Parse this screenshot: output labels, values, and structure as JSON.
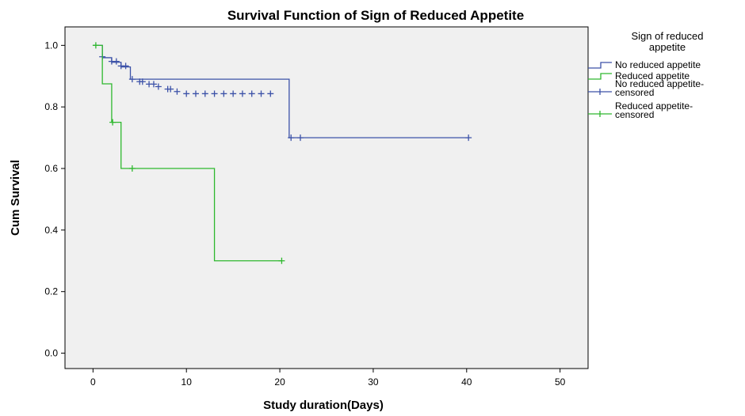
{
  "chart_data": {
    "type": "line",
    "title": "Survival Function of Sign of Reduced Appetite",
    "xlabel": "Study duration(Days)",
    "ylabel": "Cum Survival",
    "xlim": [
      -3,
      53
    ],
    "ylim": [
      -0.05,
      1.06
    ],
    "x_ticks": [
      "0",
      "10",
      "20",
      "30",
      "40",
      "50"
    ],
    "y_ticks": [
      "0.0",
      "0.2",
      "0.4",
      "0.6",
      "0.8",
      "1.0"
    ],
    "grid": false,
    "legend_position": "right",
    "legend_title_lines": [
      "Sign of reduced",
      "appetite"
    ],
    "background": "#f0f0f0",
    "series": [
      {
        "name": "No reduced appetite",
        "color": "#3c52a8",
        "steps": [
          [
            0,
            1.0
          ],
          [
            1,
            0.96
          ],
          [
            2,
            0.945
          ],
          [
            3,
            0.93
          ],
          [
            4,
            0.89
          ],
          [
            21,
            0.7
          ]
        ],
        "end_x": 40.2,
        "censored_name_lines": [
          "No reduced appetite-",
          "censored"
        ],
        "censored": [
          [
            1,
            0.963
          ],
          [
            2,
            0.948
          ],
          [
            2.5,
            0.948
          ],
          [
            3,
            0.933
          ],
          [
            3.5,
            0.933
          ],
          [
            4.2,
            0.89
          ],
          [
            5,
            0.882
          ],
          [
            5.3,
            0.882
          ],
          [
            6,
            0.874
          ],
          [
            6.5,
            0.874
          ],
          [
            7,
            0.866
          ],
          [
            8,
            0.858
          ],
          [
            8.3,
            0.858
          ],
          [
            9,
            0.85
          ],
          [
            10,
            0.843
          ],
          [
            11,
            0.843
          ],
          [
            12,
            0.843
          ],
          [
            13,
            0.843
          ],
          [
            14,
            0.843
          ],
          [
            15,
            0.843
          ],
          [
            16,
            0.843
          ],
          [
            17,
            0.843
          ],
          [
            18,
            0.843
          ],
          [
            19,
            0.843
          ],
          [
            21.2,
            0.7
          ],
          [
            22.2,
            0.7
          ],
          [
            40.2,
            0.7
          ]
        ]
      },
      {
        "name": "Reduced appetite",
        "color": "#2eb82e",
        "steps": [
          [
            0,
            1.0
          ],
          [
            1,
            0.875
          ],
          [
            2,
            0.75
          ],
          [
            3,
            0.6
          ],
          [
            13,
            0.3
          ]
        ],
        "end_x": 20.2,
        "censored_name_lines": [
          "Reduced appetite-",
          "censored"
        ],
        "censored": [
          [
            0.3,
            1.0
          ],
          [
            2.1,
            0.75
          ],
          [
            4.2,
            0.6
          ],
          [
            20.2,
            0.3
          ]
        ]
      }
    ]
  }
}
